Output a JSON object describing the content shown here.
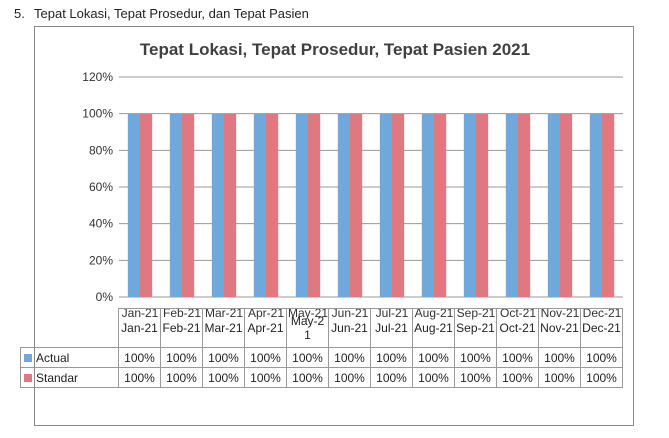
{
  "heading": {
    "number": "5.",
    "text": "Tepat Lokasi, Tepat Prosedur, dan Tepat Pasien"
  },
  "colors": {
    "actual": "#6fa8dc",
    "standar": "#e07882",
    "grid": "#999999"
  },
  "chart_data": {
    "type": "bar",
    "title": "Tepat Lokasi, Tepat Prosedur, Tepat Pasien 2021",
    "categories": [
      "Jan-21",
      "Feb-21",
      "Mar-21",
      "Apr-21",
      "May-21",
      "Jun-21",
      "Jul-21",
      "Aug-21",
      "Sep-21",
      "Oct-21",
      "Nov-21",
      "Dec-21"
    ],
    "table_categories": [
      "Jan-21",
      "Feb-21",
      "Mar-21",
      "Apr-21",
      "May-2 1",
      "Jun-21",
      "Jul-21",
      "Aug-21",
      "Sep-21",
      "Oct-21",
      "Nov-21",
      "Dec-21"
    ],
    "y_ticks": [
      "0%",
      "20%",
      "40%",
      "60%",
      "80%",
      "100%",
      "120%"
    ],
    "ylim": [
      0,
      1.2
    ],
    "grid": true,
    "legend_placement": "data-table",
    "series": [
      {
        "name": "Actual",
        "values": [
          1,
          1,
          1,
          1,
          1,
          1,
          1,
          1,
          1,
          1,
          1,
          1
        ],
        "labels": [
          "100%",
          "100%",
          "100%",
          "100%",
          "100%",
          "100%",
          "100%",
          "100%",
          "100%",
          "100%",
          "100%",
          "100%"
        ]
      },
      {
        "name": "Standar",
        "values": [
          1,
          1,
          1,
          1,
          1,
          1,
          1,
          1,
          1,
          1,
          1,
          1
        ],
        "labels": [
          "100%",
          "100%",
          "100%",
          "100%",
          "100%",
          "100%",
          "100%",
          "100%",
          "100%",
          "100%",
          "100%",
          "100%"
        ]
      }
    ]
  }
}
